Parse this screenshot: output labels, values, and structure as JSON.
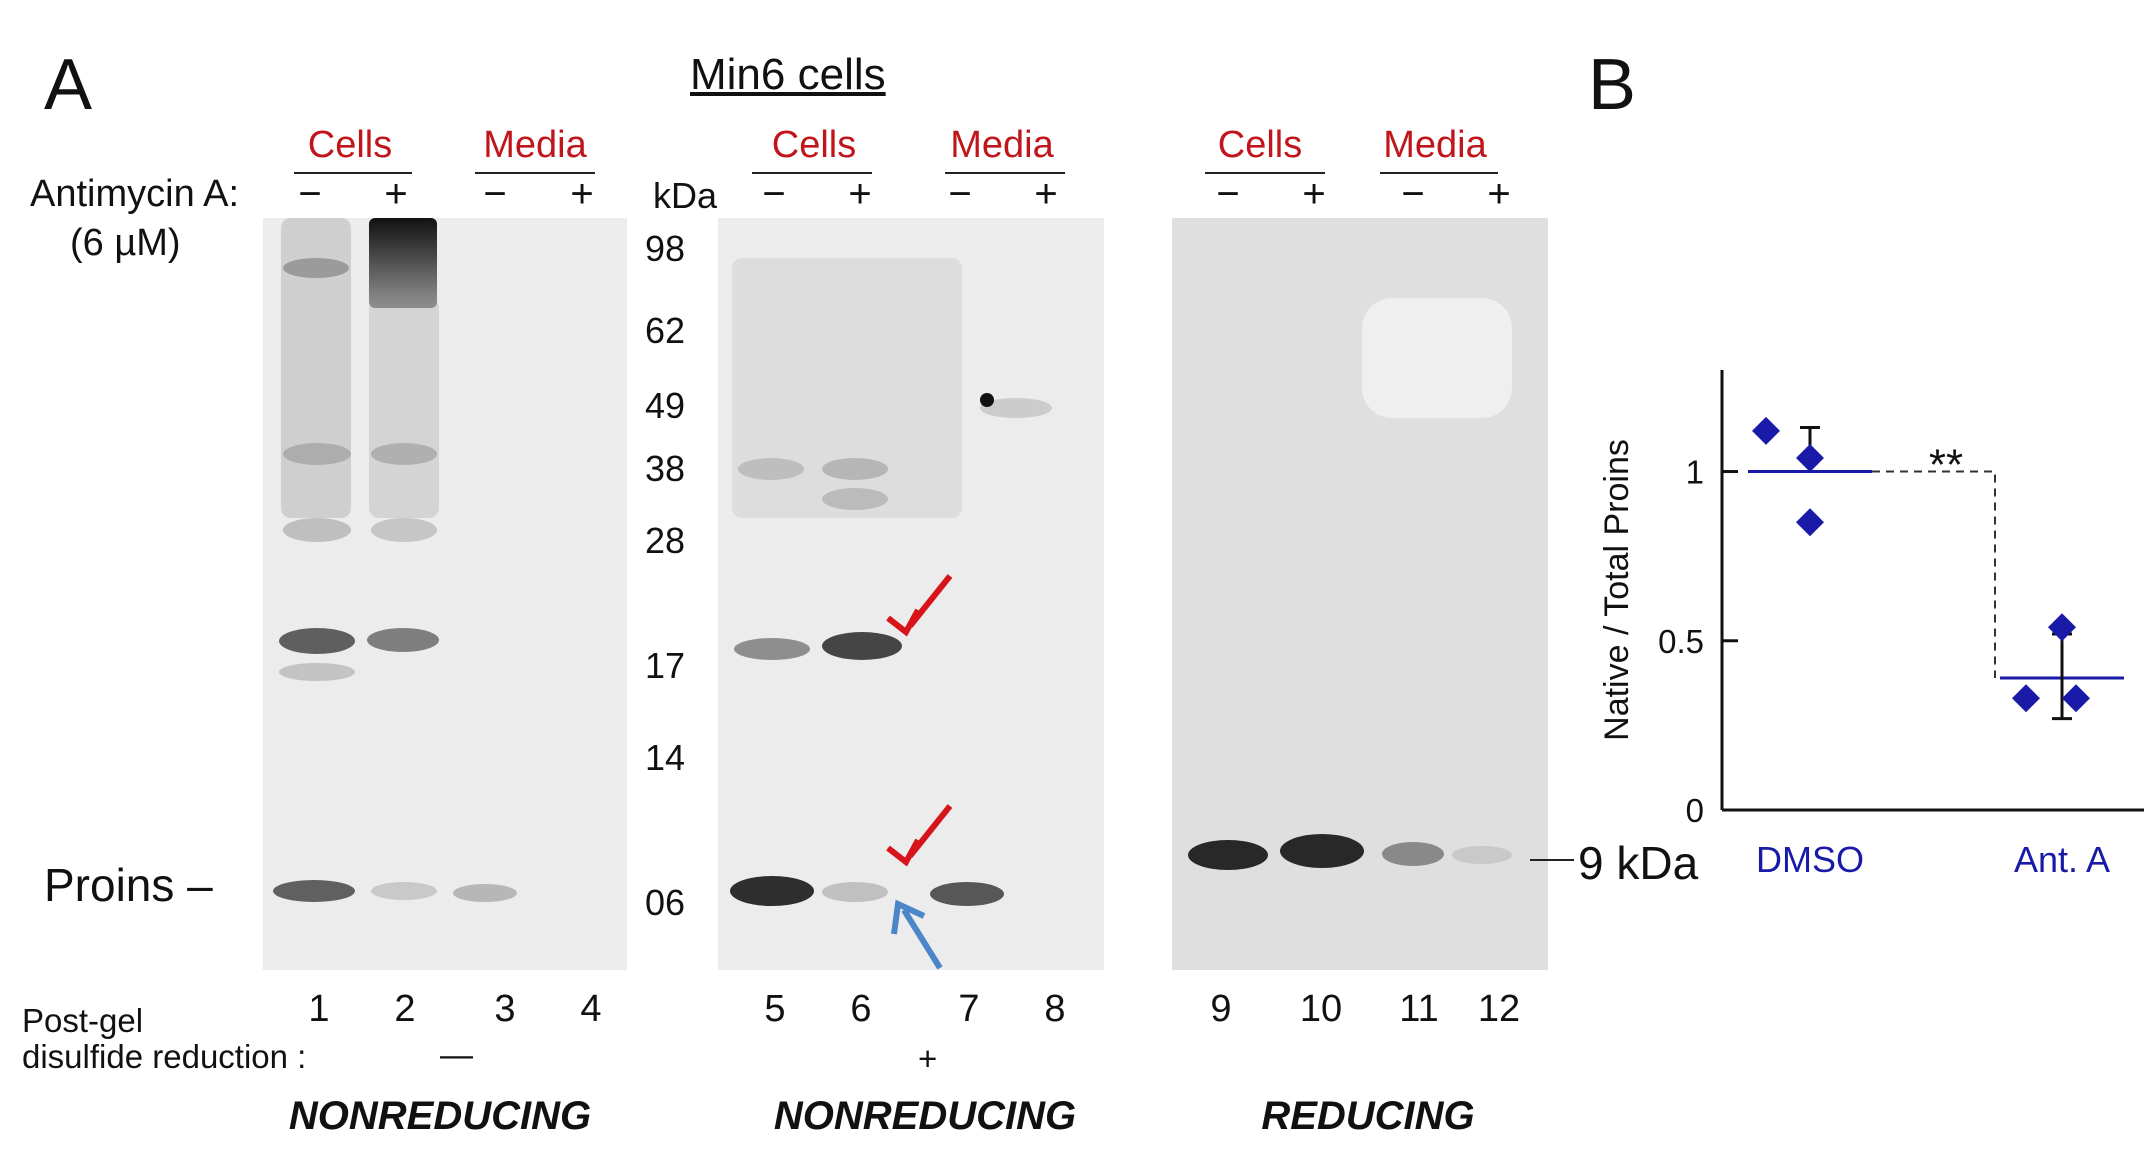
{
  "panel_a": {
    "letter": "A",
    "title": "Min6 cells",
    "treatment_label": "Antimycin A:",
    "concentration_label": "(6 µM)",
    "groups": [
      "Cells",
      "Media",
      "Cells",
      "Media",
      "Cells",
      "Media"
    ],
    "signs": [
      "−",
      "+",
      "−",
      "+",
      "−",
      "+",
      "−",
      "+",
      "−",
      "+",
      "−",
      "+"
    ],
    "kda_header": "kDa",
    "kda_markers": [
      "98",
      "62",
      "49",
      "38",
      "28",
      "17",
      "14",
      "06"
    ],
    "proins_label": "Proins –",
    "kda_9_label": "9 kDa",
    "lanes": [
      "1",
      "2",
      "3",
      "4",
      "5",
      "6",
      "7",
      "8",
      "9",
      "10",
      "11",
      "12"
    ],
    "postgel_label_line1": "Post-gel",
    "postgel_label_line2": "disulfide reduction :",
    "postgel_minus": "—",
    "postgel_plus": "+",
    "conditions": [
      "NONREDUCING",
      "NONREDUCING",
      "REDUCING"
    ],
    "arrow_colors": {
      "red": "#d8141b",
      "blue": "#4a86c8"
    }
  },
  "panel_b": {
    "letter": "B",
    "chart_data": {
      "type": "scatter",
      "ylabel": "Native / Total Proins",
      "ylim": [
        0,
        1.3
      ],
      "yticks": [
        "0",
        "0.5",
        "1"
      ],
      "categories": [
        "DMSO",
        "Ant. A"
      ],
      "series": [
        {
          "category": "DMSO",
          "points": [
            1.12,
            1.04,
            0.85
          ],
          "mean": 1.0,
          "sd_upper": 1.13
        },
        {
          "category": "Ant. A",
          "points": [
            0.54,
            0.33,
            0.33
          ],
          "mean": 0.39,
          "sd_upper": 0.52,
          "sd_lower": 0.27
        }
      ],
      "significance": "**",
      "color": "#1a1aa8"
    }
  }
}
